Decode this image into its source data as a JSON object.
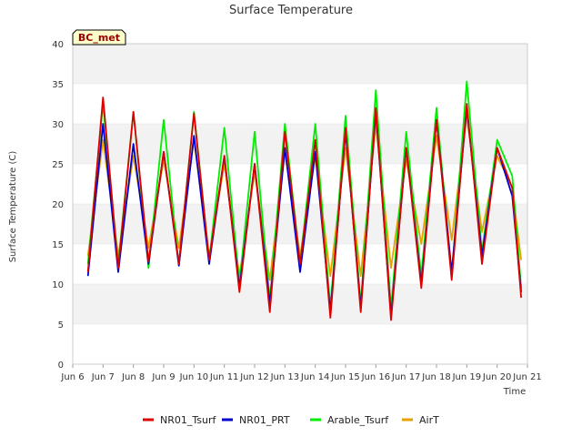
{
  "chart_data": {
    "type": "line",
    "title": "Surface Temperature",
    "xlabel": "Time",
    "ylabel": "Surface Temperature (C)",
    "ylim": [
      0,
      40
    ],
    "xlim": [
      "2024-06-06",
      "2024-06-21"
    ],
    "y_ticks": [
      "0",
      "5",
      "10",
      "15",
      "20",
      "25",
      "30",
      "35",
      "40"
    ],
    "x_tick_labels": [
      "Jun 6",
      "Jun 7",
      "Jun 8",
      "Jun 9",
      "Jun 10",
      "Jun 11",
      "Jun 12",
      "Jun 13",
      "Jun 14",
      "Jun 15",
      "Jun 16",
      "Jun 17",
      "Jun 18",
      "Jun 19",
      "Jun 20",
      "Jun 21"
    ],
    "grid": "horizontal bands",
    "legend_position": "bottom",
    "badge": {
      "text": "BC_met",
      "background": "#ffffcc",
      "text_color": "#990000"
    },
    "x": [
      "2024-06-06T12:00",
      "2024-06-07T00:00",
      "2024-06-07T12:00",
      "2024-06-08T00:00",
      "2024-06-08T12:00",
      "2024-06-09T00:00",
      "2024-06-09T12:00",
      "2024-06-10T00:00",
      "2024-06-10T12:00",
      "2024-06-11T00:00",
      "2024-06-11T12:00",
      "2024-06-12T00:00",
      "2024-06-12T12:00",
      "2024-06-13T00:00",
      "2024-06-13T12:00",
      "2024-06-14T00:00",
      "2024-06-14T12:00",
      "2024-06-15T00:00",
      "2024-06-15T12:00",
      "2024-06-16T00:00",
      "2024-06-16T12:00",
      "2024-06-17T00:00",
      "2024-06-17T12:00",
      "2024-06-18T00:00",
      "2024-06-18T12:00",
      "2024-06-19T00:00",
      "2024-06-19T12:00",
      "2024-06-20T00:00",
      "2024-06-20T12:00",
      "2024-06-20T19:00"
    ],
    "series": [
      {
        "name": "NR01_Tsurf",
        "color": "#dd0000",
        "values": [
          11.5,
          33.3,
          12.0,
          31.5,
          12.8,
          26.5,
          12.5,
          31.3,
          13.0,
          26.0,
          9.0,
          25.0,
          6.5,
          29.0,
          12.5,
          28.0,
          5.8,
          29.5,
          6.5,
          32.0,
          5.5,
          27.0,
          9.5,
          30.5,
          10.5,
          32.5,
          12.5,
          27.0,
          22.0,
          8.3
        ]
      },
      {
        "name": "NR01_PRT",
        "color": "#0000cc",
        "values": [
          11.0,
          30.0,
          11.5,
          27.5,
          12.5,
          26.5,
          12.3,
          28.5,
          12.5,
          26.0,
          9.5,
          25.0,
          7.5,
          27.0,
          11.5,
          26.5,
          6.5,
          29.0,
          7.0,
          31.5,
          6.0,
          27.0,
          10.0,
          30.5,
          11.5,
          32.0,
          13.5,
          27.0,
          21.0,
          9.0
        ]
      },
      {
        "name": "Arable_Tsurf",
        "color": "#00ee00",
        "values": [
          12.5,
          32.5,
          12.5,
          31.5,
          12.0,
          30.5,
          12.3,
          31.5,
          13.0,
          29.5,
          10.0,
          29.0,
          8.0,
          30.0,
          12.5,
          30.0,
          7.0,
          31.0,
          7.5,
          34.2,
          7.0,
          29.0,
          11.0,
          32.0,
          11.0,
          35.3,
          14.0,
          28.0,
          23.5,
          9.5
        ]
      },
      {
        "name": "AirT",
        "color": "#e8a000",
        "values": [
          13.5,
          28.0,
          13.5,
          26.0,
          14.5,
          25.5,
          14.5,
          28.0,
          13.5,
          25.0,
          11.0,
          24.0,
          10.5,
          26.5,
          13.5,
          26.0,
          11.0,
          27.0,
          11.0,
          30.0,
          12.0,
          25.5,
          15.0,
          28.5,
          15.5,
          31.0,
          16.5,
          26.0,
          22.0,
          13.0
        ]
      }
    ]
  }
}
